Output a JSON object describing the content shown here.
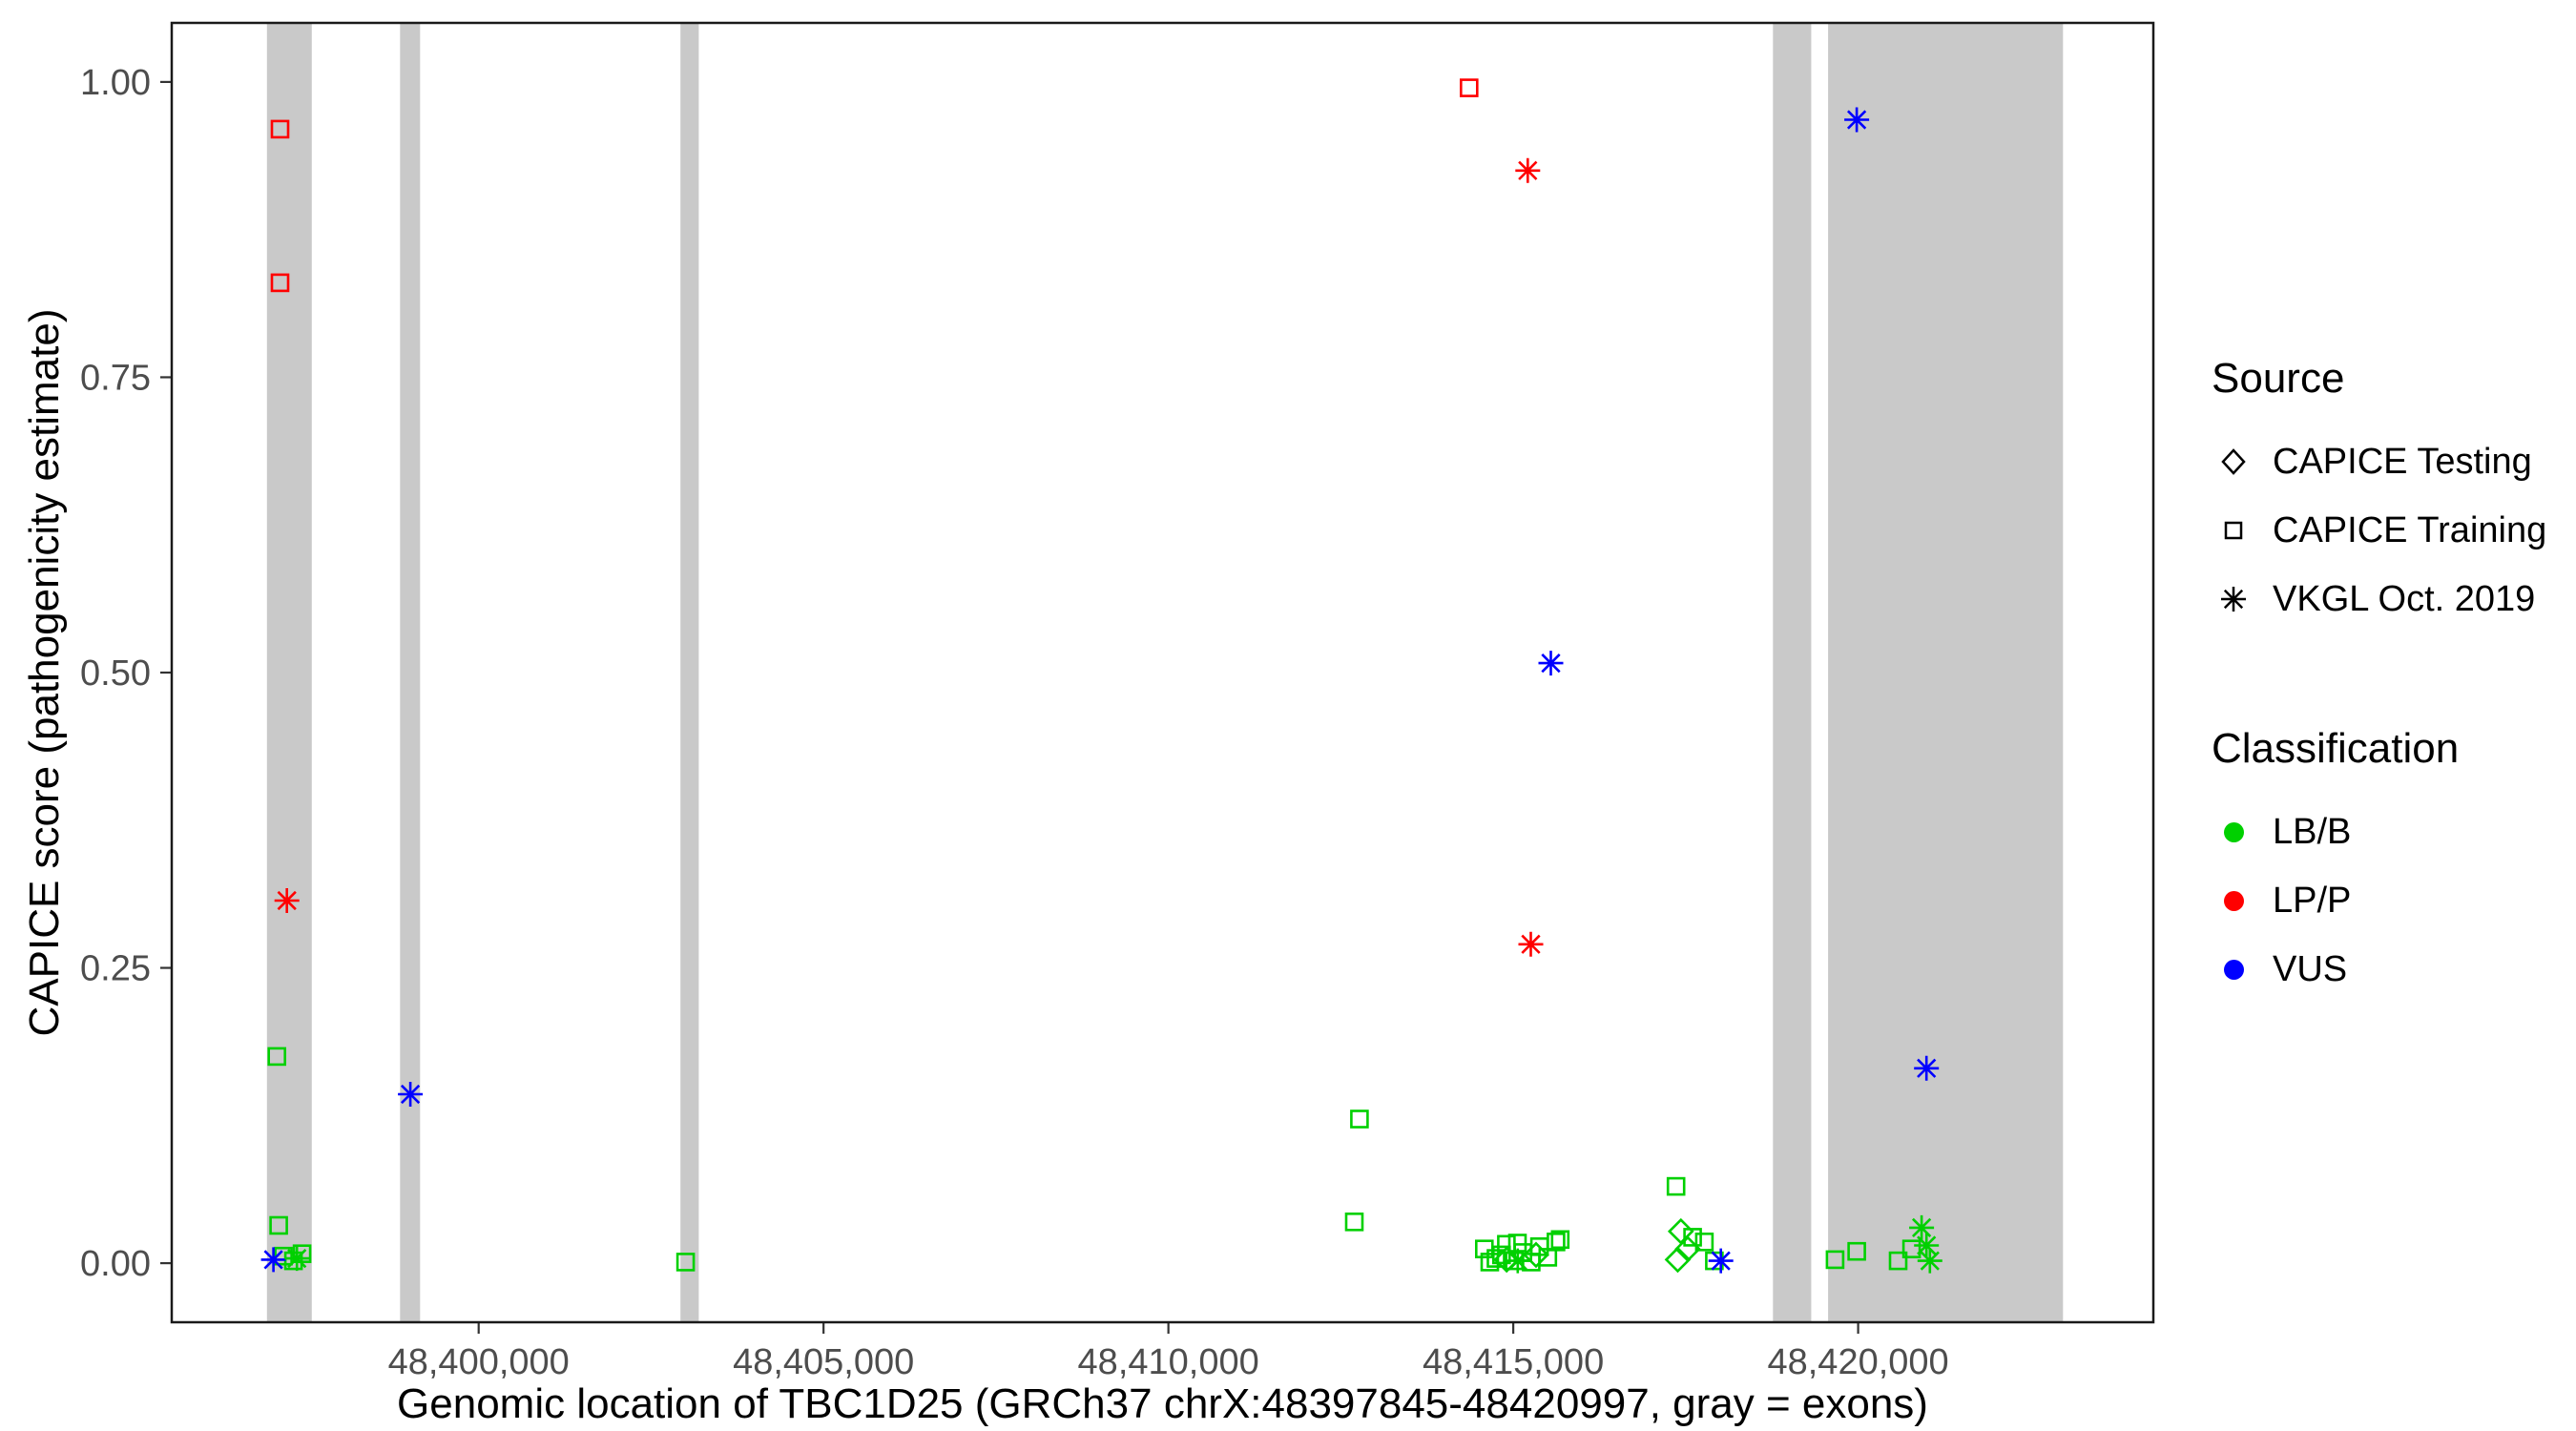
{
  "axes": {
    "x_title": "Genomic location of TBC1D25 (GRCh37 chrX:48397845-48420997, gray = exons)",
    "y_title": "CAPICE score (pathogenicity estimate)"
  },
  "legend": {
    "source": {
      "title": "Source",
      "items": [
        {
          "label": "CAPICE Testing",
          "shape": "diamond"
        },
        {
          "label": "CAPICE Training",
          "shape": "square"
        },
        {
          "label": "VKGL Oct. 2019",
          "shape": "asterisk"
        }
      ]
    },
    "classification": {
      "title": "Classification",
      "items": [
        {
          "label": "LB/B",
          "color": "#00D000"
        },
        {
          "label": "LP/P",
          "color": "#FF0000"
        },
        {
          "label": "VUS",
          "color": "#0000FF"
        }
      ]
    }
  },
  "chart_data": {
    "type": "scatter",
    "title": "",
    "xlabel": "Genomic location of TBC1D25 (GRCh37 chrX:48397845-48420997, gray = exons)",
    "ylabel": "CAPICE score (pathogenicity estimate)",
    "xlim": [
      48395550,
      48424280
    ],
    "ylim": [
      -0.05,
      1.05
    ],
    "grid": false,
    "panel_border_color": "#1a1a1a",
    "exon_color": "#C9C9C9",
    "tick_label_color": "#4d4d4d",
    "x_ticks": [
      {
        "value": 48400000,
        "label": "48,400,000"
      },
      {
        "value": 48405000,
        "label": "48,405,000"
      },
      {
        "value": 48410000,
        "label": "48,410,000"
      },
      {
        "value": 48415000,
        "label": "48,415,000"
      },
      {
        "value": 48420000,
        "label": "48,420,000"
      }
    ],
    "y_ticks": [
      {
        "value": 0.0,
        "label": "0.00"
      },
      {
        "value": 0.25,
        "label": "0.25"
      },
      {
        "value": 0.5,
        "label": "0.50"
      },
      {
        "value": 0.75,
        "label": "0.75"
      },
      {
        "value": 1.0,
        "label": "1.00"
      }
    ],
    "exons": [
      {
        "start": 48396930,
        "end": 48397580
      },
      {
        "start": 48398860,
        "end": 48399150
      },
      {
        "start": 48402925,
        "end": 48403190
      },
      {
        "start": 48418765,
        "end": 48419320
      },
      {
        "start": 48419565,
        "end": 48422970
      }
    ],
    "classification_colors": {
      "LB/B": "#00D000",
      "LP/P": "#FF0000",
      "VUS": "#0000FF"
    },
    "series": [
      {
        "name": "CAPICE Testing",
        "shape": "diamond",
        "points": [
          {
            "x": 48414905,
            "y": 0.003,
            "class": "LB/B"
          },
          {
            "x": 48415330,
            "y": 0.007,
            "class": "LB/B"
          },
          {
            "x": 48417385,
            "y": 0.003,
            "class": "LB/B"
          },
          {
            "x": 48417430,
            "y": 0.027,
            "class": "LB/B"
          },
          {
            "x": 48417530,
            "y": 0.012,
            "class": "LB/B"
          }
        ]
      },
      {
        "name": "CAPICE Training",
        "shape": "square",
        "points": [
          {
            "x": 48397120,
            "y": 0.96,
            "class": "LP/P"
          },
          {
            "x": 48397120,
            "y": 0.83,
            "class": "LP/P"
          },
          {
            "x": 48414360,
            "y": 0.995,
            "class": "LP/P"
          },
          {
            "x": 48397075,
            "y": 0.175,
            "class": "LB/B"
          },
          {
            "x": 48397100,
            "y": 0.032,
            "class": "LB/B"
          },
          {
            "x": 48397170,
            "y": 0.006,
            "class": "LB/B"
          },
          {
            "x": 48397315,
            "y": 0.002,
            "class": "LB/B"
          },
          {
            "x": 48397440,
            "y": 0.008,
            "class": "LB/B"
          },
          {
            "x": 48403000,
            "y": 0.001,
            "class": "LB/B"
          },
          {
            "x": 48412770,
            "y": 0.122,
            "class": "LB/B"
          },
          {
            "x": 48412695,
            "y": 0.035,
            "class": "LB/B"
          },
          {
            "x": 48414580,
            "y": 0.012,
            "class": "LB/B"
          },
          {
            "x": 48414660,
            "y": 0.001,
            "class": "LB/B"
          },
          {
            "x": 48414750,
            "y": 0.004,
            "class": "LB/B"
          },
          {
            "x": 48414830,
            "y": 0.007,
            "class": "LB/B"
          },
          {
            "x": 48414900,
            "y": 0.016,
            "class": "LB/B"
          },
          {
            "x": 48415015,
            "y": 0.002,
            "class": "LB/B"
          },
          {
            "x": 48415060,
            "y": 0.017,
            "class": "LB/B"
          },
          {
            "x": 48415140,
            "y": 0.009,
            "class": "LB/B"
          },
          {
            "x": 48415260,
            "y": 0.001,
            "class": "LB/B"
          },
          {
            "x": 48415380,
            "y": 0.014,
            "class": "LB/B"
          },
          {
            "x": 48415500,
            "y": 0.005,
            "class": "LB/B"
          },
          {
            "x": 48415620,
            "y": 0.018,
            "class": "LB/B"
          },
          {
            "x": 48415680,
            "y": 0.02,
            "class": "LB/B"
          },
          {
            "x": 48417360,
            "y": 0.065,
            "class": "LB/B"
          },
          {
            "x": 48417600,
            "y": 0.022,
            "class": "LB/B"
          },
          {
            "x": 48417770,
            "y": 0.018,
            "class": "LB/B"
          },
          {
            "x": 48417915,
            "y": 0.002,
            "class": "LB/B"
          },
          {
            "x": 48419665,
            "y": 0.003,
            "class": "LB/B"
          },
          {
            "x": 48419980,
            "y": 0.01,
            "class": "LB/B"
          },
          {
            "x": 48420580,
            "y": 0.002,
            "class": "LB/B"
          },
          {
            "x": 48420775,
            "y": 0.012,
            "class": "LB/B"
          }
        ]
      },
      {
        "name": "VKGL Oct. 2019",
        "shape": "asterisk",
        "points": [
          {
            "x": 48397220,
            "y": 0.307,
            "class": "LP/P"
          },
          {
            "x": 48415210,
            "y": 0.925,
            "class": "LP/P"
          },
          {
            "x": 48415255,
            "y": 0.27,
            "class": "LP/P"
          },
          {
            "x": 48397025,
            "y": 0.003,
            "class": "VUS"
          },
          {
            "x": 48399010,
            "y": 0.143,
            "class": "VUS"
          },
          {
            "x": 48415545,
            "y": 0.508,
            "class": "VUS"
          },
          {
            "x": 48418010,
            "y": 0.002,
            "class": "VUS"
          },
          {
            "x": 48419980,
            "y": 0.968,
            "class": "VUS"
          },
          {
            "x": 48420990,
            "y": 0.165,
            "class": "VUS"
          },
          {
            "x": 48397365,
            "y": 0.004,
            "class": "LB/B"
          },
          {
            "x": 48415065,
            "y": 0.002,
            "class": "LB/B"
          },
          {
            "x": 48420920,
            "y": 0.03,
            "class": "LB/B"
          },
          {
            "x": 48420990,
            "y": 0.015,
            "class": "LB/B"
          },
          {
            "x": 48421040,
            "y": 0.002,
            "class": "LB/B"
          }
        ]
      }
    ]
  }
}
